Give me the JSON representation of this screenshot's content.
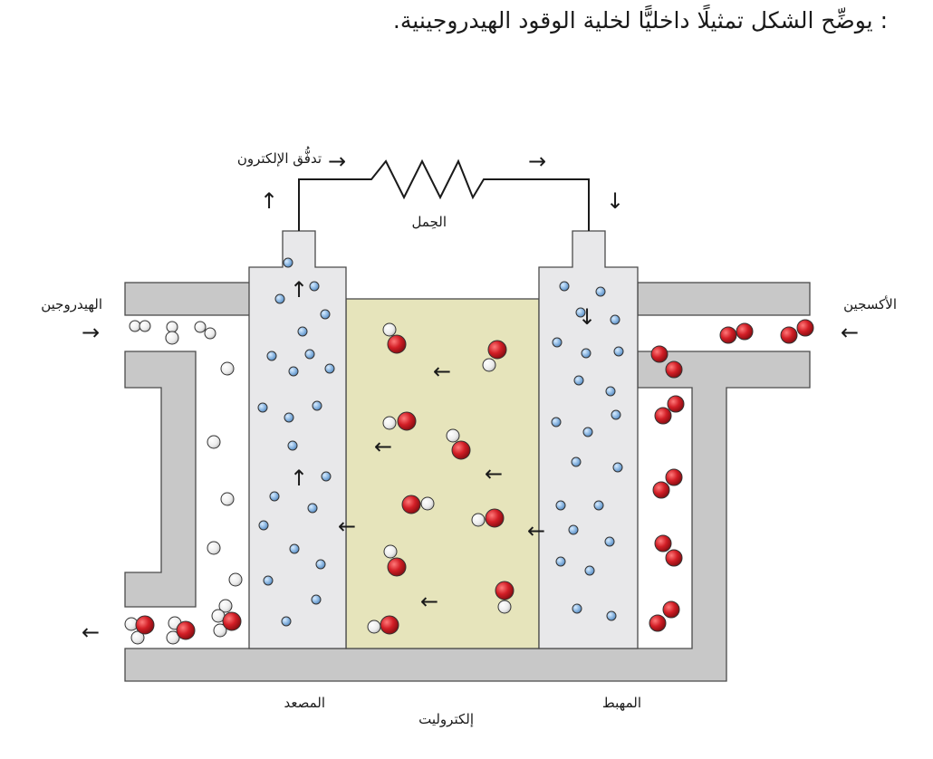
{
  "caption": ": يوضِّح الشكل تمثيلًا داخليًّا لخلية الوقود الهيدروجينية.",
  "labels": {
    "electron_flow": "تدفُّق الإلكترون",
    "load": "الحِمل",
    "hydrogen": "الهيدروجين",
    "oxygen": "الأكسجين",
    "anode": "المصعد",
    "electrolyte": "إلكتروليت",
    "cathode": "المهبط"
  },
  "colors": {
    "casing": "#c8c8c8",
    "electrode": "#e8e8ea",
    "electrolyte": "#e6e4bb",
    "oxygen_atom": "#cc1f27",
    "hydrogen_atom": "#f2f2f2",
    "electron": "#8fb8e0"
  },
  "arrow_glyphs": {
    "left": "←",
    "right": "→",
    "up": "↑",
    "down": "↓"
  }
}
